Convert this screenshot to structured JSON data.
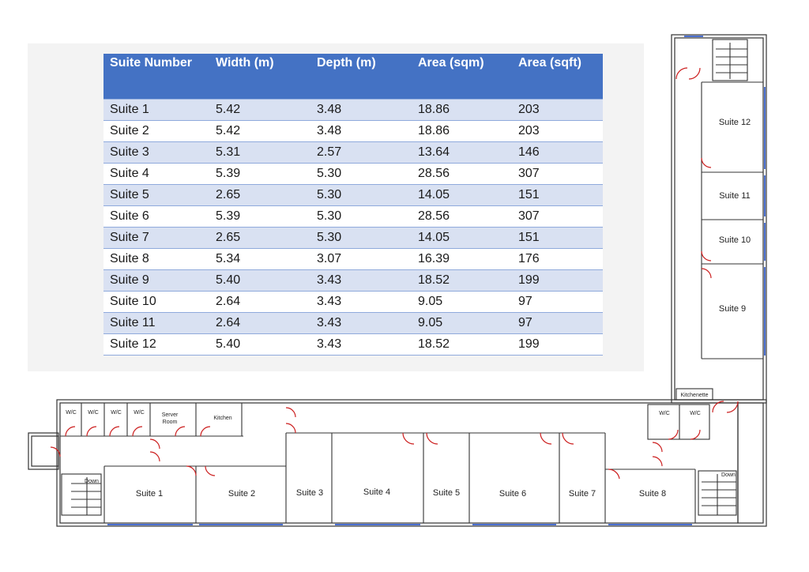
{
  "table": {
    "headers": [
      "Suite Number",
      "Width (m)",
      "Depth (m)",
      "Area (sqm)",
      "Area (sqft)"
    ],
    "rows": [
      [
        "Suite 1",
        "5.42",
        "3.48",
        "18.86",
        "203"
      ],
      [
        "Suite 2",
        "5.42",
        "3.48",
        "18.86",
        "203"
      ],
      [
        "Suite 3",
        "5.31",
        "2.57",
        "13.64",
        "146"
      ],
      [
        "Suite 4",
        "5.39",
        "5.30",
        "28.56",
        "307"
      ],
      [
        "Suite 5",
        "2.65",
        "5.30",
        "14.05",
        "151"
      ],
      [
        "Suite 6",
        "5.39",
        "5.30",
        "28.56",
        "307"
      ],
      [
        "Suite 7",
        "2.65",
        "5.30",
        "14.05",
        "151"
      ],
      [
        "Suite 8",
        "5.34",
        "3.07",
        "16.39",
        "176"
      ],
      [
        "Suite 9",
        "5.40",
        "3.43",
        "18.52",
        "199"
      ],
      [
        "Suite 10",
        "2.64",
        "3.43",
        "9.05",
        "97"
      ],
      [
        "Suite 11",
        "2.64",
        "3.43",
        "9.05",
        "97"
      ],
      [
        "Suite 12",
        "5.40",
        "3.43",
        "18.52",
        "199"
      ]
    ]
  },
  "plan": {
    "rooms": {
      "suite1": "Suite 1",
      "suite2": "Suite 2",
      "suite3": "Suite 3",
      "suite4": "Suite 4",
      "suite5": "Suite 5",
      "suite6": "Suite 6",
      "suite7": "Suite 7",
      "suite8": "Suite 8",
      "suite9": "Suite 9",
      "suite10": "Suite 10",
      "suite11": "Suite 11",
      "suite12": "Suite 12"
    },
    "wc": "W/C",
    "server_room": [
      "Server",
      "Room"
    ],
    "kitchen": "Kitchen",
    "kitchenette": "Kitchenette",
    "stair_down": "Down"
  },
  "colors": {
    "header": "#4472c4",
    "band": "#d9e1f2",
    "door": "#cc1f1f",
    "wall": "#333333",
    "window": "#4a6fd0"
  }
}
